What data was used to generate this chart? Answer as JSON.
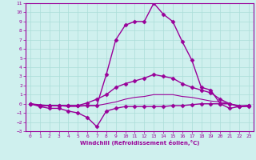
{
  "xlabel": "Windchill (Refroidissement éolien,°C)",
  "background_color": "#cff0ee",
  "line_color": "#990099",
  "grid_color": "#aaddd8",
  "xlim": [
    -0.5,
    23.5
  ],
  "ylim": [
    -3,
    11
  ],
  "xticks": [
    0,
    1,
    2,
    3,
    4,
    5,
    6,
    7,
    8,
    9,
    10,
    11,
    12,
    13,
    14,
    15,
    16,
    17,
    18,
    19,
    20,
    21,
    22,
    23
  ],
  "yticks": [
    -3,
    -2,
    -1,
    0,
    1,
    2,
    3,
    4,
    5,
    6,
    7,
    8,
    9,
    10,
    11
  ],
  "series": [
    {
      "x": [
        0,
        1,
        2,
        3,
        4,
        5,
        6,
        7,
        8,
        9,
        10,
        11,
        12,
        13,
        14,
        15,
        16,
        17,
        18,
        19,
        20,
        21,
        22,
        23
      ],
      "y": [
        0.0,
        -0.2,
        -0.2,
        -0.2,
        -0.2,
        -0.2,
        -0.2,
        -0.2,
        3.2,
        7.0,
        8.6,
        9.0,
        9.0,
        11.0,
        9.8,
        9.0,
        6.8,
        4.8,
        1.8,
        1.5,
        0.0,
        -0.5,
        -0.3,
        -0.2
      ],
      "marker": "D",
      "markersize": 2.5,
      "linewidth": 1.0
    },
    {
      "x": [
        0,
        1,
        2,
        3,
        4,
        5,
        6,
        7,
        8,
        9,
        10,
        11,
        12,
        13,
        14,
        15,
        16,
        17,
        18,
        19,
        20,
        21,
        22,
        23
      ],
      "y": [
        0.0,
        -0.2,
        -0.2,
        -0.2,
        -0.2,
        -0.2,
        0.1,
        0.5,
        1.0,
        1.8,
        2.2,
        2.5,
        2.8,
        3.2,
        3.0,
        2.8,
        2.2,
        1.8,
        1.5,
        1.2,
        0.5,
        0.0,
        -0.3,
        -0.2
      ],
      "marker": "D",
      "markersize": 2.5,
      "linewidth": 1.0
    },
    {
      "x": [
        0,
        1,
        2,
        3,
        4,
        5,
        6,
        7,
        8,
        9,
        10,
        11,
        12,
        13,
        14,
        15,
        16,
        17,
        18,
        19,
        20,
        21,
        22,
        23
      ],
      "y": [
        0.0,
        -0.3,
        -0.5,
        -0.5,
        -0.8,
        -1.0,
        -1.5,
        -2.5,
        -0.8,
        -0.5,
        -0.3,
        -0.3,
        -0.3,
        -0.3,
        -0.3,
        -0.2,
        -0.2,
        -0.1,
        0.0,
        0.0,
        0.0,
        0.0,
        -0.3,
        -0.3
      ],
      "marker": "D",
      "markersize": 2.5,
      "linewidth": 1.0
    },
    {
      "x": [
        0,
        1,
        2,
        3,
        4,
        5,
        6,
        7,
        8,
        9,
        10,
        11,
        12,
        13,
        14,
        15,
        16,
        17,
        18,
        19,
        20,
        21,
        22,
        23
      ],
      "y": [
        0.0,
        -0.1,
        -0.2,
        -0.2,
        -0.3,
        -0.3,
        -0.2,
        -0.2,
        0.0,
        0.2,
        0.5,
        0.7,
        0.8,
        1.0,
        1.0,
        1.0,
        0.8,
        0.7,
        0.5,
        0.3,
        0.2,
        0.0,
        -0.2,
        -0.2
      ],
      "marker": null,
      "markersize": 0,
      "linewidth": 0.8
    }
  ]
}
